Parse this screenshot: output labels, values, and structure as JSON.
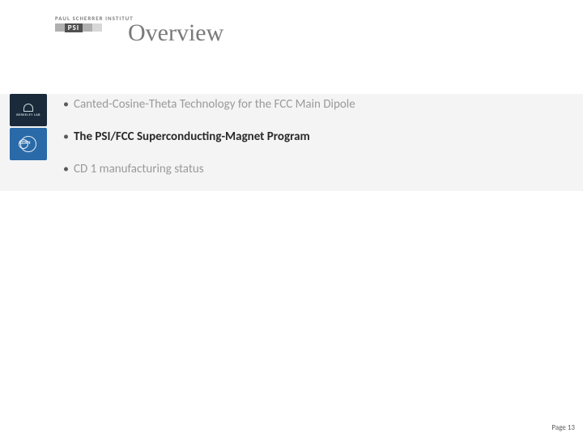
{
  "logo": {
    "institute_label": "PAUL SCHERRER INSTITUT",
    "mark_text": "PSI"
  },
  "title": "Overview",
  "bullets": [
    {
      "text": "Canted-Cosine-Theta Technology for the FCC Main Dipole",
      "style": "muted"
    },
    {
      "text": "The PSI/FCC Superconducting-Magnet Program",
      "style": "bold"
    },
    {
      "text": "CD 1 manufacturing status",
      "style": "muted"
    }
  ],
  "side_logos": {
    "berkeley_label": "BERKELEY LAB",
    "cern_label": "CERN"
  },
  "footer": {
    "page_label": "Page 13"
  },
  "colors": {
    "band_bg": "#f4f4f4",
    "title_color": "#7a7a7a",
    "text_color": "#3a3a3a",
    "muted_color": "#9a9a9a"
  }
}
